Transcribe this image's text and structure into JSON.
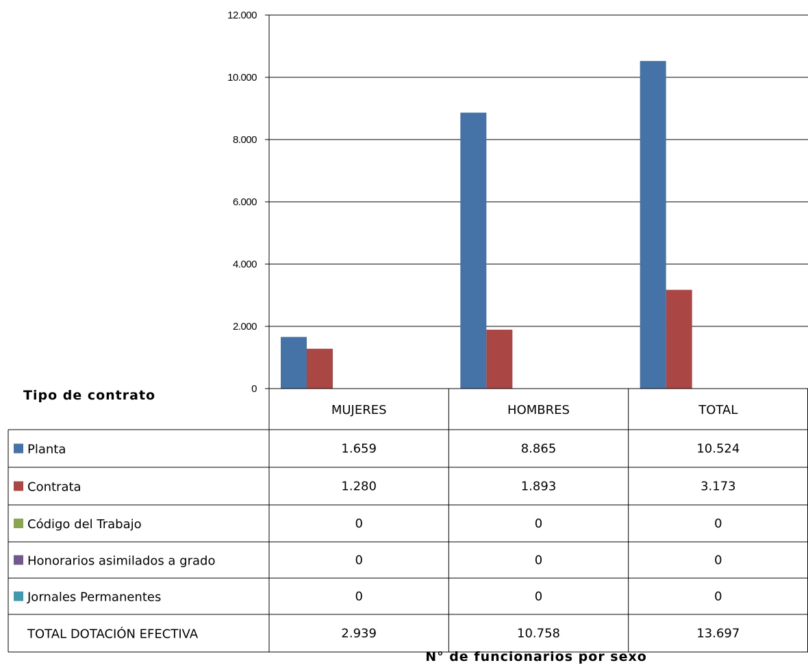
{
  "chart_data": {
    "type": "bar",
    "title": "",
    "xlabel": "N° de funcionarios por sexo",
    "table_header": "Tipo de contrato",
    "categories": [
      "MUJERES",
      "HOMBRES",
      "TOTAL"
    ],
    "ylim": [
      0,
      12000
    ],
    "ytick_labels": [
      "0",
      "2.000",
      "4.000",
      "6.000",
      "8.000",
      "10.000",
      "12.000"
    ],
    "ytick_values": [
      0,
      2000,
      4000,
      6000,
      8000,
      10000,
      12000
    ],
    "grid": true,
    "legend": "table-rows",
    "series": [
      {
        "name": "Planta",
        "color": "#4572A7",
        "values": [
          1659,
          8865,
          10524
        ],
        "labels": [
          "1.659",
          "8.865",
          "10.524"
        ]
      },
      {
        "name": "Contrata",
        "color": "#AA4643",
        "values": [
          1280,
          1893,
          3173
        ],
        "labels": [
          "1.280",
          "1.893",
          "3.173"
        ]
      },
      {
        "name": "Código del Trabajo",
        "color": "#89A54E",
        "values": [
          0,
          0,
          0
        ],
        "labels": [
          "0",
          "0",
          "0"
        ]
      },
      {
        "name": "Honorarios asimilados a grado",
        "color": "#71588F",
        "values": [
          0,
          0,
          0
        ],
        "labels": [
          "0",
          "0",
          "0"
        ]
      },
      {
        "name": "Jornales Permanentes",
        "color": "#4198AF",
        "values": [
          0,
          0,
          0
        ],
        "labels": [
          "0",
          "0",
          "0"
        ]
      }
    ],
    "total_row": {
      "label": "TOTAL DOTACIÓN EFECTIVA",
      "labels": [
        "2.939",
        "10.758",
        "13.697"
      ]
    }
  }
}
